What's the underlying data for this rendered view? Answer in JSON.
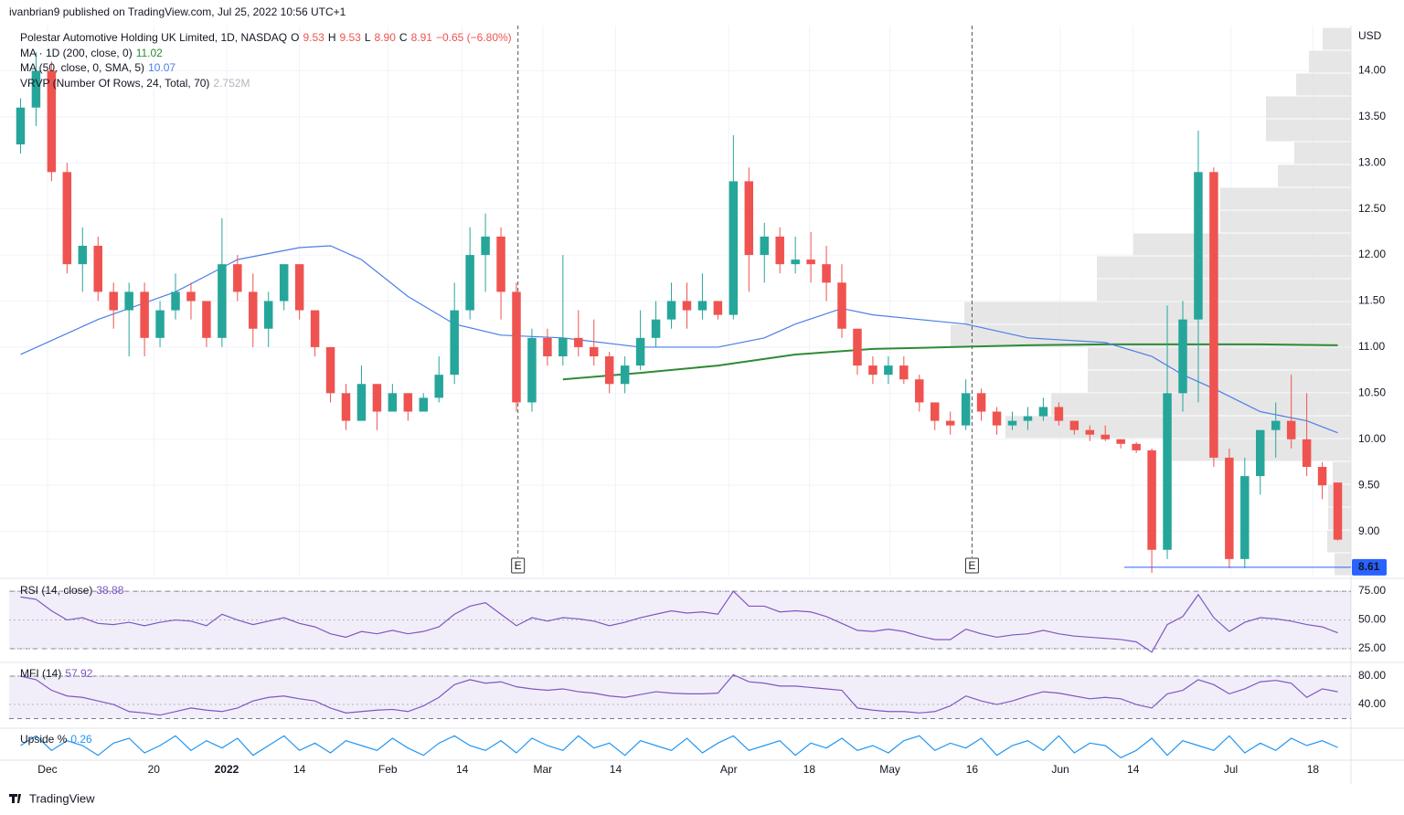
{
  "header": "ivanbrian9 published on TradingView.com, Jul 25, 2022 10:56 UTC+1",
  "footer": "TradingView",
  "chart_data": [
    {
      "type": "candlestick",
      "title": "Polestar Automotive Holding UK Limited, 1D, NASDAQ",
      "quote": [
        "O",
        "9.53",
        "H",
        "9.53",
        "L",
        "8.90",
        "C",
        "8.91",
        "−0.65 (−6.80%)"
      ],
      "currency": "USD",
      "up_color": "#26a69a",
      "down_color": "#ef5350",
      "grid": true,
      "xlim": [
        -0.5,
        85.5
      ],
      "ylim": [
        8.52,
        14.47
      ],
      "yticks": [
        {
          "value": 9,
          "label": "9.00"
        },
        {
          "value": 9.5,
          "label": "9.50"
        },
        {
          "value": 10,
          "label": "10.00"
        },
        {
          "value": 10.5,
          "label": "10.50"
        },
        {
          "value": 11,
          "label": "11.00"
        },
        {
          "value": 11.5,
          "label": "11.50"
        },
        {
          "value": 12,
          "label": "12.00"
        },
        {
          "value": 12.5,
          "label": "12.50"
        },
        {
          "value": 13,
          "label": "13.00"
        },
        {
          "value": 13.5,
          "label": "13.50"
        },
        {
          "value": 14,
          "label": "14.00"
        }
      ],
      "xticks": [
        {
          "value": 1.74,
          "label": "Dec"
        },
        {
          "value": 8.6,
          "label": "20"
        },
        {
          "value": 13.3,
          "label": "2022"
        },
        {
          "value": 18,
          "label": "14"
        },
        {
          "value": 23.7,
          "label": "Feb"
        },
        {
          "value": 28.5,
          "label": "14"
        },
        {
          "value": 33.7,
          "label": "Mar"
        },
        {
          "value": 38.4,
          "label": "14"
        },
        {
          "value": 45.7,
          "label": "Apr"
        },
        {
          "value": 50.9,
          "label": "18"
        },
        {
          "value": 56.1,
          "label": "May"
        },
        {
          "value": 61.4,
          "label": "16"
        },
        {
          "value": 67.1,
          "label": "Jun"
        },
        {
          "value": 71.8,
          "label": "14"
        },
        {
          "value": 78.1,
          "label": "Jul"
        },
        {
          "value": 83.4,
          "label": "18"
        }
      ],
      "candles": [
        [
          13.2,
          13.7,
          13.1,
          13.6
        ],
        [
          13.6,
          14.2,
          13.4,
          14.0
        ],
        [
          14.0,
          14.1,
          12.8,
          12.9
        ],
        [
          12.9,
          13.0,
          11.8,
          11.9
        ],
        [
          11.9,
          12.3,
          11.6,
          12.1
        ],
        [
          12.1,
          12.2,
          11.5,
          11.6
        ],
        [
          11.6,
          11.7,
          11.2,
          11.4
        ],
        [
          11.4,
          11.7,
          10.9,
          11.6
        ],
        [
          11.6,
          11.7,
          10.9,
          11.1
        ],
        [
          11.1,
          11.5,
          11.0,
          11.4
        ],
        [
          11.4,
          11.8,
          11.3,
          11.6
        ],
        [
          11.6,
          11.7,
          11.3,
          11.5
        ],
        [
          11.5,
          11.5,
          11.0,
          11.1
        ],
        [
          11.1,
          12.4,
          11.0,
          11.9
        ],
        [
          11.9,
          12.0,
          11.5,
          11.6
        ],
        [
          11.6,
          11.8,
          11.0,
          11.2
        ],
        [
          11.2,
          11.6,
          11.0,
          11.5
        ],
        [
          11.5,
          11.9,
          11.4,
          11.9
        ],
        [
          11.9,
          11.9,
          11.3,
          11.4
        ],
        [
          11.4,
          11.4,
          10.9,
          11.0
        ],
        [
          11.0,
          11.0,
          10.4,
          10.5
        ],
        [
          10.5,
          10.6,
          10.1,
          10.2
        ],
        [
          10.2,
          10.8,
          10.2,
          10.6
        ],
        [
          10.6,
          10.6,
          10.1,
          10.3
        ],
        [
          10.3,
          10.6,
          10.3,
          10.5
        ],
        [
          10.5,
          10.5,
          10.2,
          10.3
        ],
        [
          10.3,
          10.5,
          10.3,
          10.45
        ],
        [
          10.45,
          10.9,
          10.4,
          10.7
        ],
        [
          10.7,
          11.7,
          10.6,
          11.4
        ],
        [
          11.4,
          12.3,
          11.3,
          12.0
        ],
        [
          12.0,
          12.45,
          11.6,
          12.2
        ],
        [
          12.2,
          12.3,
          11.3,
          11.6
        ],
        [
          11.6,
          11.7,
          10.3,
          10.4
        ],
        [
          10.4,
          11.2,
          10.3,
          11.1
        ],
        [
          11.1,
          11.2,
          10.8,
          10.9
        ],
        [
          10.9,
          12.0,
          10.8,
          11.1
        ],
        [
          11.1,
          11.4,
          10.9,
          11.0
        ],
        [
          11.0,
          11.3,
          10.8,
          10.9
        ],
        [
          10.9,
          10.95,
          10.5,
          10.6
        ],
        [
          10.6,
          10.9,
          10.5,
          10.8
        ],
        [
          10.8,
          11.4,
          10.75,
          11.1
        ],
        [
          11.1,
          11.5,
          11.0,
          11.3
        ],
        [
          11.3,
          11.7,
          11.2,
          11.5
        ],
        [
          11.5,
          11.7,
          11.2,
          11.4
        ],
        [
          11.4,
          11.8,
          11.3,
          11.5
        ],
        [
          11.5,
          11.5,
          11.3,
          11.35
        ],
        [
          11.35,
          13.3,
          11.3,
          12.8
        ],
        [
          12.8,
          12.95,
          11.6,
          12.0
        ],
        [
          12.0,
          12.35,
          11.7,
          12.2
        ],
        [
          12.2,
          12.3,
          11.8,
          11.9
        ],
        [
          11.9,
          12.2,
          11.8,
          11.95
        ],
        [
          11.95,
          12.25,
          11.7,
          11.9
        ],
        [
          11.9,
          12.1,
          11.5,
          11.7
        ],
        [
          11.7,
          11.9,
          11.1,
          11.2
        ],
        [
          11.2,
          11.2,
          10.7,
          10.8
        ],
        [
          10.8,
          10.9,
          10.6,
          10.7
        ],
        [
          10.7,
          10.9,
          10.6,
          10.8
        ],
        [
          10.8,
          10.9,
          10.6,
          10.65
        ],
        [
          10.65,
          10.7,
          10.3,
          10.4
        ],
        [
          10.4,
          10.4,
          10.1,
          10.2
        ],
        [
          10.2,
          10.3,
          10.05,
          10.15
        ],
        [
          10.15,
          10.65,
          10.1,
          10.5
        ],
        [
          10.5,
          10.55,
          10.2,
          10.3
        ],
        [
          10.3,
          10.35,
          10.05,
          10.15
        ],
        [
          10.15,
          10.3,
          10.1,
          10.2
        ],
        [
          10.2,
          10.35,
          10.1,
          10.25
        ],
        [
          10.25,
          10.45,
          10.2,
          10.35
        ],
        [
          10.35,
          10.4,
          10.15,
          10.2
        ],
        [
          10.2,
          10.2,
          10.05,
          10.1
        ],
        [
          10.1,
          10.15,
          9.98,
          10.05
        ],
        [
          10.05,
          10.15,
          9.98,
          10.0
        ],
        [
          10.0,
          10.0,
          9.9,
          9.95
        ],
        [
          9.95,
          9.97,
          9.85,
          9.88
        ],
        [
          9.88,
          9.9,
          8.55,
          8.8
        ],
        [
          8.8,
          11.45,
          8.7,
          10.5
        ],
        [
          10.5,
          11.5,
          10.3,
          11.3
        ],
        [
          11.3,
          13.35,
          10.4,
          12.9
        ],
        [
          12.9,
          12.95,
          9.7,
          9.8
        ],
        [
          9.8,
          9.9,
          8.6,
          8.7
        ],
        [
          8.7,
          9.8,
          8.6,
          9.6
        ],
        [
          9.6,
          10.1,
          9.4,
          10.1
        ],
        [
          10.1,
          10.4,
          9.8,
          10.2
        ],
        [
          10.2,
          10.7,
          9.9,
          10.0
        ],
        [
          10.0,
          10.5,
          9.6,
          9.7
        ],
        [
          9.7,
          9.75,
          9.35,
          9.5
        ],
        [
          9.53,
          9.53,
          8.9,
          8.91
        ]
      ],
      "series": [
        {
          "name": "MA · 1D (200, close, 0)",
          "legend_value": "11.02",
          "color": "#2e8b35",
          "x": [
            35,
            40,
            45,
            50,
            55,
            60,
            65,
            70,
            75,
            80,
            85
          ],
          "values": [
            10.65,
            10.72,
            10.8,
            10.92,
            10.98,
            11.0,
            11.02,
            11.03,
            11.03,
            11.03,
            11.02
          ]
        },
        {
          "name": "MA (50, close, 0, SMA, 5)",
          "legend_value": "10.07",
          "color": "#4a7ee8",
          "x": [
            0,
            5,
            10,
            14,
            18,
            20,
            22,
            25,
            28,
            31,
            35,
            40,
            45,
            48,
            50,
            53,
            55,
            58,
            61,
            65,
            70,
            73,
            75,
            77,
            80,
            83,
            85
          ],
          "values": [
            10.92,
            11.3,
            11.6,
            11.95,
            12.08,
            12.1,
            11.95,
            11.55,
            11.25,
            11.13,
            11.1,
            11.0,
            11.0,
            11.1,
            11.25,
            11.42,
            11.35,
            11.3,
            11.25,
            11.1,
            11.05,
            10.9,
            10.7,
            10.55,
            10.3,
            10.2,
            10.07
          ]
        }
      ],
      "volume_profile": {
        "name": "VRVP (Number Of Rows, 24, Total, 70)",
        "legend_value": "2.752M",
        "color": "#e0e0e0",
        "values": [
          31,
          46,
          60,
          93,
          93,
          62,
          80,
          143,
          143,
          238,
          278,
          278,
          423,
          438,
          288,
          288,
          328,
          378,
          196,
          20,
          25,
          25,
          26,
          18
        ]
      },
      "price_line": 8.61,
      "price_line_color": "#2962ff",
      "events": [
        {
          "x": 32.1,
          "label": "E"
        },
        {
          "x": 61.4,
          "label": "E"
        }
      ]
    },
    {
      "type": "line",
      "name": "RSI (14, close)",
      "legend_value": "38.88",
      "color": "#7e57c2",
      "ylim": [
        15.5,
        83
      ],
      "band": [
        25,
        75
      ],
      "yticks": [
        {
          "value": 25,
          "label": "25.00"
        },
        {
          "value": 50,
          "label": "50.00"
        },
        {
          "value": 75,
          "label": "75.00"
        }
      ],
      "values": [
        70,
        68,
        58,
        50,
        52,
        47,
        46,
        48,
        45,
        48,
        50,
        49,
        45,
        55,
        50,
        46,
        49,
        52,
        47,
        44,
        38,
        35,
        40,
        38,
        41,
        38,
        40,
        44,
        55,
        62,
        65,
        55,
        45,
        52,
        49,
        52,
        51,
        49,
        45,
        48,
        52,
        55,
        58,
        56,
        57,
        55,
        75,
        62,
        62,
        57,
        58,
        57,
        53,
        47,
        41,
        40,
        42,
        40,
        36,
        33,
        33,
        42,
        38,
        35,
        37,
        38,
        41,
        38,
        36,
        35,
        34,
        33,
        31,
        22,
        46,
        53,
        72,
        52,
        40,
        48,
        52,
        51,
        49,
        46,
        44,
        38.88
      ]
    },
    {
      "type": "line",
      "name": "MFI (14)",
      "legend_value": "57.92",
      "color": "#7e57c2",
      "ylim": [
        6.5,
        95.5
      ],
      "band": [
        20,
        80
      ],
      "yticks": [
        {
          "value": 40,
          "label": "40.00"
        },
        {
          "value": 80,
          "label": "80.00"
        }
      ],
      "values": [
        80,
        75,
        60,
        52,
        50,
        45,
        40,
        30,
        28,
        25,
        30,
        35,
        32,
        30,
        35,
        45,
        50,
        52,
        48,
        45,
        35,
        28,
        30,
        32,
        33,
        30,
        38,
        50,
        68,
        75,
        70,
        72,
        65,
        62,
        60,
        62,
        58,
        56,
        52,
        50,
        54,
        58,
        56,
        55,
        55,
        56,
        82,
        72,
        70,
        66,
        66,
        64,
        62,
        60,
        35,
        32,
        30,
        30,
        28,
        30,
        38,
        52,
        45,
        40,
        45,
        52,
        58,
        56,
        52,
        48,
        50,
        48,
        40,
        35,
        55,
        60,
        75,
        68,
        55,
        62,
        72,
        74,
        70,
        50,
        62,
        57.92
      ]
    },
    {
      "type": "line",
      "name": "Upside %",
      "legend_value": "0.26",
      "color": "#2196f3",
      "ylim": [
        0,
        0.6
      ],
      "values": [
        0.3,
        0.5,
        0.2,
        0.4,
        0.3,
        0.1,
        0.35,
        0.45,
        0.15,
        0.3,
        0.5,
        0.2,
        0.4,
        0.25,
        0.45,
        0.1,
        0.3,
        0.5,
        0.2,
        0.35,
        0.15,
        0.4,
        0.3,
        0.2,
        0.45,
        0.25,
        0.1,
        0.35,
        0.5,
        0.3,
        0.2,
        0.4,
        0.15,
        0.45,
        0.3,
        0.2,
        0.5,
        0.25,
        0.35,
        0.1,
        0.4,
        0.3,
        0.2,
        0.45,
        0.15,
        0.35,
        0.5,
        0.2,
        0.3,
        0.4,
        0.1,
        0.35,
        0.25,
        0.45,
        0.2,
        0.3,
        0.15,
        0.4,
        0.5,
        0.2,
        0.35,
        0.25,
        0.45,
        0.1,
        0.3,
        0.4,
        0.2,
        0.5,
        0.15,
        0.35,
        0.3,
        0.05,
        0.2,
        0.45,
        0.1,
        0.4,
        0.3,
        0.2,
        0.5,
        0.15,
        0.35,
        0.2,
        0.45,
        0.3,
        0.4,
        0.26
      ]
    }
  ]
}
